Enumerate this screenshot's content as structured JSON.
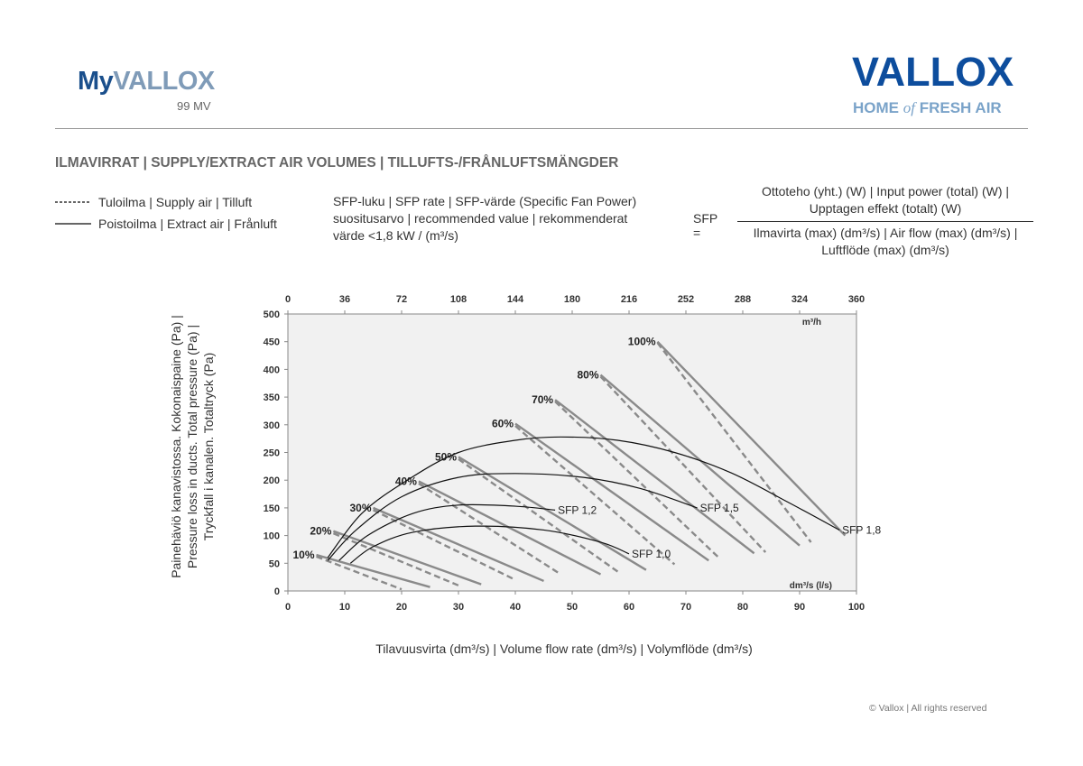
{
  "header": {
    "brand_left_part1": "My",
    "brand_left_part2": "VALLOX",
    "model": "99 MV",
    "brand_right": "VALLOX",
    "tagline_part1": "HOME",
    "tagline_part2": "of",
    "tagline_part3": "FRESH AIR"
  },
  "section_title": "ILMAVIRRAT | SUPPLY/EXTRACT AIR VOLUMES | TILLUFTS-/FRÅNLUFTSMÄNGDER",
  "legend": {
    "supply": "Tuloilma | Supply air | Tilluft",
    "extract": "Poistoilma | Extract air | Frånluft"
  },
  "sfp_description": {
    "line1": "SFP-luku | SFP rate | SFP-värde (Specific Fan Power)",
    "line2": "suositusarvo | recommended value | rekommenderat",
    "line3": "värde <1,8 kW / (m³/s)"
  },
  "formula": {
    "lhs": "SFP =",
    "numerator_line1": "Ottoteho (yht.) (W) | Input power (total) (W) |",
    "numerator_line2": "Upptagen effekt (totalt) (W)",
    "denominator_line1": "Ilmavirta (max) (dm³/s) | Air flow (max) (dm³/s) |",
    "denominator_line2": "Luftflöde (max) (dm³/s)"
  },
  "footer": {
    "copyright": "© Vallox | All rights reserved"
  },
  "chart_data": {
    "type": "line",
    "xlabel": "Tilavuusvirta (dm³/s) | Volume flow rate (dm³/s) | Volymflöde (dm³/s)",
    "ylabel_line1": "Painehäviö kanavistossa. Kokonaispaine (Pa) |",
    "ylabel_line2": "Pressure loss in ducts. Total pressure (Pa) |",
    "ylabel_line3": "Tryckfall i kanalen. Totaltryck (Pa)",
    "xlim": [
      0,
      100
    ],
    "ylim": [
      0,
      500
    ],
    "x_ticks": [
      "0",
      "10",
      "20",
      "30",
      "40",
      "50",
      "60",
      "70",
      "80",
      "90",
      "100"
    ],
    "y_ticks": [
      "0",
      "50",
      "100",
      "150",
      "200",
      "250",
      "300",
      "350",
      "400",
      "450",
      "500"
    ],
    "x2_ticks": [
      "0",
      "36",
      "72",
      "108",
      "144",
      "180",
      "216",
      "252",
      "288",
      "324",
      "360"
    ],
    "x2_unit": "m³/h",
    "x_unit": "dm³/s (l/s)",
    "grid": false,
    "fan_curves": [
      {
        "name": "10%",
        "extract": [
          [
            5,
            65
          ],
          [
            25,
            7
          ]
        ],
        "supply": [
          [
            5,
            62
          ],
          [
            20,
            3
          ]
        ]
      },
      {
        "name": "20%",
        "extract": [
          [
            8,
            108
          ],
          [
            34,
            12
          ]
        ],
        "supply": [
          [
            8,
            104
          ],
          [
            30,
            10
          ]
        ]
      },
      {
        "name": "30%",
        "extract": [
          [
            15,
            150
          ],
          [
            45,
            18
          ]
        ],
        "supply": [
          [
            15,
            146
          ],
          [
            40,
            20
          ]
        ]
      },
      {
        "name": "40%",
        "extract": [
          [
            23,
            198
          ],
          [
            55,
            30
          ]
        ],
        "supply": [
          [
            23,
            194
          ],
          [
            48,
            30
          ]
        ]
      },
      {
        "name": "50%",
        "extract": [
          [
            30,
            242
          ],
          [
            63,
            38
          ]
        ],
        "supply": [
          [
            30,
            238
          ],
          [
            58,
            35
          ]
        ]
      },
      {
        "name": "60%",
        "extract": [
          [
            40,
            302
          ],
          [
            74,
            55
          ]
        ],
        "supply": [
          [
            40,
            298
          ],
          [
            68,
            48
          ]
        ]
      },
      {
        "name": "70%",
        "extract": [
          [
            47,
            345
          ],
          [
            82,
            68
          ]
        ],
        "supply": [
          [
            47,
            342
          ],
          [
            76,
            58
          ]
        ]
      },
      {
        "name": "80%",
        "extract": [
          [
            55,
            390
          ],
          [
            90,
            82
          ]
        ],
        "supply": [
          [
            55,
            387
          ],
          [
            84,
            70
          ]
        ]
      },
      {
        "name": "100%",
        "extract": [
          [
            65,
            450
          ],
          [
            98,
            100
          ]
        ],
        "supply": [
          [
            65,
            448
          ],
          [
            92,
            88
          ]
        ]
      }
    ],
    "sfp_curves": [
      {
        "name": "SFP 1,0",
        "points": [
          [
            11,
            50
          ],
          [
            15,
            80
          ],
          [
            22,
            106
          ],
          [
            33,
            117
          ],
          [
            45,
            110
          ],
          [
            55,
            88
          ],
          [
            60,
            67
          ]
        ]
      },
      {
        "name": "SFP 1,2",
        "points": [
          [
            9,
            55
          ],
          [
            14,
            100
          ],
          [
            22,
            140
          ],
          [
            30,
            155
          ],
          [
            40,
            153
          ],
          [
            47,
            146
          ]
        ]
      },
      {
        "name": "SFP 1,5",
        "points": [
          [
            7,
            55
          ],
          [
            12,
            110
          ],
          [
            20,
            170
          ],
          [
            30,
            205
          ],
          [
            40,
            212
          ],
          [
            52,
            205
          ],
          [
            62,
            185
          ],
          [
            72,
            150
          ]
        ]
      },
      {
        "name": "SFP 1,8",
        "points": [
          [
            7,
            60
          ],
          [
            13,
            140
          ],
          [
            21,
            200
          ],
          [
            30,
            250
          ],
          [
            40,
            272
          ],
          [
            48,
            278
          ],
          [
            58,
            272
          ],
          [
            68,
            250
          ],
          [
            78,
            213
          ],
          [
            88,
            160
          ],
          [
            97,
            110
          ]
        ]
      }
    ]
  }
}
